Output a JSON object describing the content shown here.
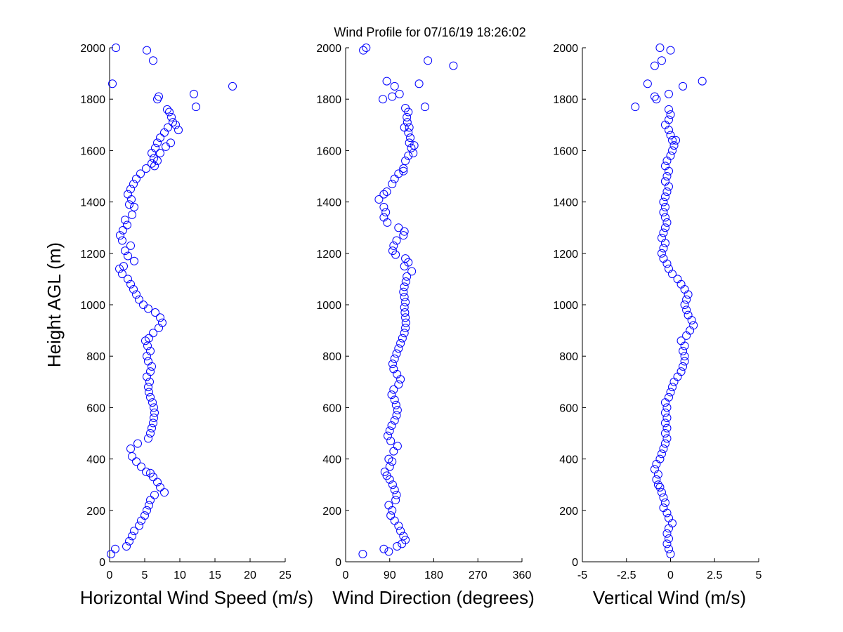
{
  "chart_data": [
    {
      "type": "scatter",
      "id": "speed",
      "title": "Wind Profile for  07/16/19 18:26:02",
      "xlabel": "Horizontal Wind Speed (m/s)",
      "ylabel": "Height AGL (m)",
      "xlim": [
        0,
        25
      ],
      "ylim": [
        0,
        2000
      ],
      "xticks": [
        "0",
        "5",
        "10",
        "15",
        "20",
        "25"
      ],
      "xtick_values": [
        0,
        5,
        10,
        15,
        20,
        25
      ],
      "yticks": [
        "0",
        "200",
        "400",
        "600",
        "800",
        "1000",
        "1200",
        "1400",
        "1600",
        "1800",
        "2000"
      ],
      "ytick_values": [
        0,
        200,
        400,
        600,
        800,
        1000,
        1200,
        1400,
        1600,
        1800,
        2000
      ],
      "marker_color": "#0000ff",
      "points": [
        [
          0.2,
          30
        ],
        [
          0.8,
          50
        ],
        [
          2.4,
          60
        ],
        [
          2.8,
          80
        ],
        [
          3.2,
          100
        ],
        [
          3.5,
          120
        ],
        [
          4.2,
          140
        ],
        [
          4.5,
          160
        ],
        [
          5.0,
          180
        ],
        [
          5.3,
          200
        ],
        [
          5.6,
          220
        ],
        [
          5.8,
          240
        ],
        [
          6.4,
          260
        ],
        [
          7.8,
          270
        ],
        [
          7.2,
          290
        ],
        [
          6.8,
          310
        ],
        [
          6.2,
          330
        ],
        [
          5.8,
          345
        ],
        [
          5.2,
          350
        ],
        [
          4.5,
          370
        ],
        [
          3.8,
          390
        ],
        [
          3.2,
          410
        ],
        [
          3.0,
          440
        ],
        [
          4.0,
          460
        ],
        [
          5.5,
          480
        ],
        [
          5.8,
          500
        ],
        [
          6.0,
          520
        ],
        [
          6.2,
          540
        ],
        [
          6.3,
          560
        ],
        [
          6.4,
          580
        ],
        [
          6.3,
          600
        ],
        [
          6.1,
          620
        ],
        [
          5.8,
          640
        ],
        [
          5.6,
          660
        ],
        [
          5.5,
          680
        ],
        [
          5.7,
          700
        ],
        [
          5.3,
          720
        ],
        [
          5.8,
          740
        ],
        [
          6.0,
          760
        ],
        [
          5.5,
          780
        ],
        [
          5.3,
          800
        ],
        [
          5.8,
          820
        ],
        [
          5.4,
          840
        ],
        [
          5.1,
          860
        ],
        [
          5.6,
          870
        ],
        [
          6.2,
          890
        ],
        [
          7.0,
          910
        ],
        [
          7.5,
          930
        ],
        [
          7.2,
          950
        ],
        [
          6.5,
          970
        ],
        [
          5.5,
          985
        ],
        [
          4.8,
          1000
        ],
        [
          4.2,
          1020
        ],
        [
          3.8,
          1040
        ],
        [
          3.4,
          1060
        ],
        [
          3.0,
          1080
        ],
        [
          2.6,
          1100
        ],
        [
          1.8,
          1120
        ],
        [
          1.4,
          1140
        ],
        [
          2.0,
          1150
        ],
        [
          3.5,
          1170
        ],
        [
          2.6,
          1190
        ],
        [
          2.2,
          1210
        ],
        [
          3.0,
          1230
        ],
        [
          1.8,
          1250
        ],
        [
          1.5,
          1270
        ],
        [
          1.9,
          1290
        ],
        [
          2.5,
          1310
        ],
        [
          2.2,
          1330
        ],
        [
          3.2,
          1350
        ],
        [
          3.5,
          1380
        ],
        [
          2.8,
          1390
        ],
        [
          3.1,
          1410
        ],
        [
          2.6,
          1430
        ],
        [
          3.0,
          1450
        ],
        [
          3.4,
          1470
        ],
        [
          3.8,
          1490
        ],
        [
          4.4,
          1510
        ],
        [
          5.2,
          1530
        ],
        [
          6.0,
          1550
        ],
        [
          6.3,
          1570
        ],
        [
          6.0,
          1590
        ],
        [
          6.5,
          1610
        ],
        [
          6.8,
          1630
        ],
        [
          7.2,
          1650
        ],
        [
          7.8,
          1670
        ],
        [
          8.3,
          1690
        ],
        [
          9.0,
          1710
        ],
        [
          8.8,
          1730
        ],
        [
          8.5,
          1750
        ],
        [
          8.2,
          1760
        ],
        [
          7.0,
          1810
        ],
        [
          6.8,
          1800
        ],
        [
          12.0,
          1820
        ],
        [
          17.5,
          1850
        ],
        [
          12.3,
          1770
        ],
        [
          0.4,
          1860
        ],
        [
          6.2,
          1950
        ],
        [
          5.3,
          1990
        ],
        [
          0.9,
          2000
        ],
        [
          9.8,
          1680
        ],
        [
          9.4,
          1700
        ],
        [
          8.0,
          1615
        ],
        [
          7.2,
          1590
        ],
        [
          6.8,
          1560
        ],
        [
          6.4,
          1540
        ],
        [
          8.7,
          1630
        ]
      ]
    },
    {
      "type": "scatter",
      "id": "direction",
      "xlabel": "Wind Direction (degrees)",
      "xlim": [
        0,
        360
      ],
      "ylim": [
        0,
        2000
      ],
      "xticks": [
        "0",
        "90",
        "180",
        "270",
        "360"
      ],
      "xtick_values": [
        0,
        90,
        180,
        270,
        360
      ],
      "yticks": [
        "0",
        "200",
        "400",
        "600",
        "800",
        "1000",
        "1200",
        "1400",
        "1600",
        "1800",
        "2000"
      ],
      "ytick_values": [
        0,
        200,
        400,
        600,
        800,
        1000,
        1200,
        1400,
        1600,
        1800,
        2000
      ],
      "marker_color": "#0000ff",
      "points": [
        [
          35,
          30
        ],
        [
          78,
          50
        ],
        [
          88,
          40
        ],
        [
          105,
          60
        ],
        [
          115,
          70
        ],
        [
          122,
          85
        ],
        [
          118,
          100
        ],
        [
          112,
          120
        ],
        [
          108,
          140
        ],
        [
          100,
          160
        ],
        [
          92,
          180
        ],
        [
          95,
          200
        ],
        [
          88,
          220
        ],
        [
          102,
          240
        ],
        [
          104,
          260
        ],
        [
          100,
          280
        ],
        [
          96,
          300
        ],
        [
          90,
          320
        ],
        [
          84,
          335
        ],
        [
          80,
          350
        ],
        [
          90,
          370
        ],
        [
          95,
          390
        ],
        [
          88,
          400
        ],
        [
          98,
          430
        ],
        [
          106,
          450
        ],
        [
          92,
          470
        ],
        [
          86,
          490
        ],
        [
          90,
          510
        ],
        [
          94,
          530
        ],
        [
          100,
          550
        ],
        [
          104,
          570
        ],
        [
          106,
          590
        ],
        [
          103,
          610
        ],
        [
          100,
          630
        ],
        [
          94,
          650
        ],
        [
          98,
          670
        ],
        [
          108,
          690
        ],
        [
          112,
          710
        ],
        [
          105,
          730
        ],
        [
          98,
          750
        ],
        [
          96,
          770
        ],
        [
          100,
          790
        ],
        [
          104,
          810
        ],
        [
          108,
          830
        ],
        [
          112,
          850
        ],
        [
          116,
          870
        ],
        [
          120,
          890
        ],
        [
          122,
          910
        ],
        [
          123,
          930
        ],
        [
          122,
          950
        ],
        [
          121,
          970
        ],
        [
          120,
          990
        ],
        [
          122,
          1010
        ],
        [
          120,
          1030
        ],
        [
          118,
          1050
        ],
        [
          120,
          1070
        ],
        [
          123,
          1090
        ],
        [
          125,
          1110
        ],
        [
          135,
          1130
        ],
        [
          120,
          1150
        ],
        [
          128,
          1165
        ],
        [
          122,
          1180
        ],
        [
          102,
          1195
        ],
        [
          96,
          1210
        ],
        [
          98,
          1230
        ],
        [
          104,
          1250
        ],
        [
          118,
          1270
        ],
        [
          120,
          1285
        ],
        [
          108,
          1300
        ],
        [
          85,
          1320
        ],
        [
          78,
          1340
        ],
        [
          82,
          1360
        ],
        [
          78,
          1380
        ],
        [
          68,
          1410
        ],
        [
          78,
          1430
        ],
        [
          84,
          1440
        ],
        [
          95,
          1470
        ],
        [
          100,
          1490
        ],
        [
          108,
          1510
        ],
        [
          118,
          1530
        ],
        [
          122,
          1560
        ],
        [
          128,
          1580
        ],
        [
          138,
          1590
        ],
        [
          134,
          1610
        ],
        [
          130,
          1630
        ],
        [
          132,
          1650
        ],
        [
          128,
          1670
        ],
        [
          130,
          1690
        ],
        [
          126,
          1710
        ],
        [
          125,
          1730
        ],
        [
          128,
          1750
        ],
        [
          122,
          1765
        ],
        [
          120,
          1690
        ],
        [
          140,
          1620
        ],
        [
          162,
          1770
        ],
        [
          76,
          1800
        ],
        [
          95,
          1810
        ],
        [
          110,
          1820
        ],
        [
          100,
          1850
        ],
        [
          150,
          1860
        ],
        [
          84,
          1870
        ],
        [
          220,
          1930
        ],
        [
          168,
          1950
        ],
        [
          42,
          2000
        ],
        [
          36,
          1990
        ],
        [
          118,
          1520
        ]
      ]
    },
    {
      "type": "scatter",
      "id": "vertical",
      "xlabel": "Vertical Wind (m/s)",
      "xlim": [
        -5,
        5
      ],
      "ylim": [
        0,
        2000
      ],
      "xticks": [
        "-5",
        "-2.5",
        "0",
        "2.5",
        "5"
      ],
      "xtick_values": [
        -5,
        -2.5,
        0,
        2.5,
        5
      ],
      "yticks": [
        "0",
        "200",
        "400",
        "600",
        "800",
        "1000",
        "1200",
        "1400",
        "1600",
        "1800",
        "2000"
      ],
      "ytick_values": [
        0,
        200,
        400,
        600,
        800,
        1000,
        1200,
        1400,
        1600,
        1800,
        2000
      ],
      "marker_color": "#0000ff",
      "points": [
        [
          0.0,
          30
        ],
        [
          -0.1,
          50
        ],
        [
          -0.2,
          70
        ],
        [
          -0.1,
          90
        ],
        [
          -0.2,
          110
        ],
        [
          -0.1,
          130
        ],
        [
          0.1,
          150
        ],
        [
          -0.1,
          170
        ],
        [
          -0.2,
          190
        ],
        [
          -0.4,
          210
        ],
        [
          -0.3,
          230
        ],
        [
          -0.4,
          250
        ],
        [
          -0.5,
          270
        ],
        [
          -0.6,
          290
        ],
        [
          -0.7,
          300
        ],
        [
          -0.8,
          320
        ],
        [
          -0.7,
          340
        ],
        [
          -0.9,
          360
        ],
        [
          -0.8,
          380
        ],
        [
          -0.6,
          400
        ],
        [
          -0.5,
          420
        ],
        [
          -0.4,
          440
        ],
        [
          -0.3,
          460
        ],
        [
          -0.2,
          480
        ],
        [
          -0.3,
          500
        ],
        [
          -0.2,
          520
        ],
        [
          -0.3,
          540
        ],
        [
          -0.2,
          560
        ],
        [
          -0.3,
          580
        ],
        [
          -0.2,
          600
        ],
        [
          -0.3,
          620
        ],
        [
          -0.1,
          640
        ],
        [
          0.0,
          660
        ],
        [
          0.1,
          680
        ],
        [
          0.2,
          700
        ],
        [
          0.4,
          720
        ],
        [
          0.6,
          740
        ],
        [
          0.7,
          760
        ],
        [
          0.8,
          780
        ],
        [
          0.8,
          800
        ],
        [
          0.7,
          820
        ],
        [
          0.8,
          840
        ],
        [
          0.6,
          860
        ],
        [
          0.9,
          880
        ],
        [
          1.1,
          900
        ],
        [
          1.3,
          920
        ],
        [
          1.2,
          940
        ],
        [
          1.0,
          960
        ],
        [
          0.9,
          980
        ],
        [
          0.8,
          1000
        ],
        [
          0.9,
          1020
        ],
        [
          1.0,
          1040
        ],
        [
          0.8,
          1060
        ],
        [
          0.6,
          1080
        ],
        [
          0.4,
          1100
        ],
        [
          0.1,
          1120
        ],
        [
          -0.1,
          1140
        ],
        [
          -0.2,
          1160
        ],
        [
          -0.4,
          1180
        ],
        [
          -0.5,
          1200
        ],
        [
          -0.4,
          1220
        ],
        [
          -0.3,
          1240
        ],
        [
          -0.5,
          1260
        ],
        [
          -0.4,
          1280
        ],
        [
          -0.3,
          1300
        ],
        [
          -0.2,
          1320
        ],
        [
          -0.3,
          1340
        ],
        [
          -0.4,
          1360
        ],
        [
          -0.3,
          1380
        ],
        [
          -0.4,
          1400
        ],
        [
          -0.3,
          1420
        ],
        [
          -0.2,
          1440
        ],
        [
          -0.1,
          1460
        ],
        [
          -0.3,
          1480
        ],
        [
          -0.2,
          1500
        ],
        [
          -0.1,
          1520
        ],
        [
          -0.3,
          1540
        ],
        [
          -0.2,
          1560
        ],
        [
          0.0,
          1580
        ],
        [
          0.1,
          1600
        ],
        [
          0.2,
          1620
        ],
        [
          0.1,
          1640
        ],
        [
          0.0,
          1660
        ],
        [
          -0.1,
          1680
        ],
        [
          -0.3,
          1700
        ],
        [
          -0.1,
          1720
        ],
        [
          0.0,
          1740
        ],
        [
          -0.1,
          1760
        ],
        [
          -2.0,
          1770
        ],
        [
          -0.8,
          1800
        ],
        [
          -0.9,
          1810
        ],
        [
          -0.1,
          1820
        ],
        [
          0.7,
          1850
        ],
        [
          -1.3,
          1860
        ],
        [
          1.8,
          1870
        ],
        [
          -0.9,
          1930
        ],
        [
          -0.5,
          1950
        ],
        [
          0.0,
          1990
        ],
        [
          -0.6,
          2000
        ],
        [
          0.3,
          1640
        ],
        [
          -0.3,
          1480
        ]
      ]
    }
  ]
}
